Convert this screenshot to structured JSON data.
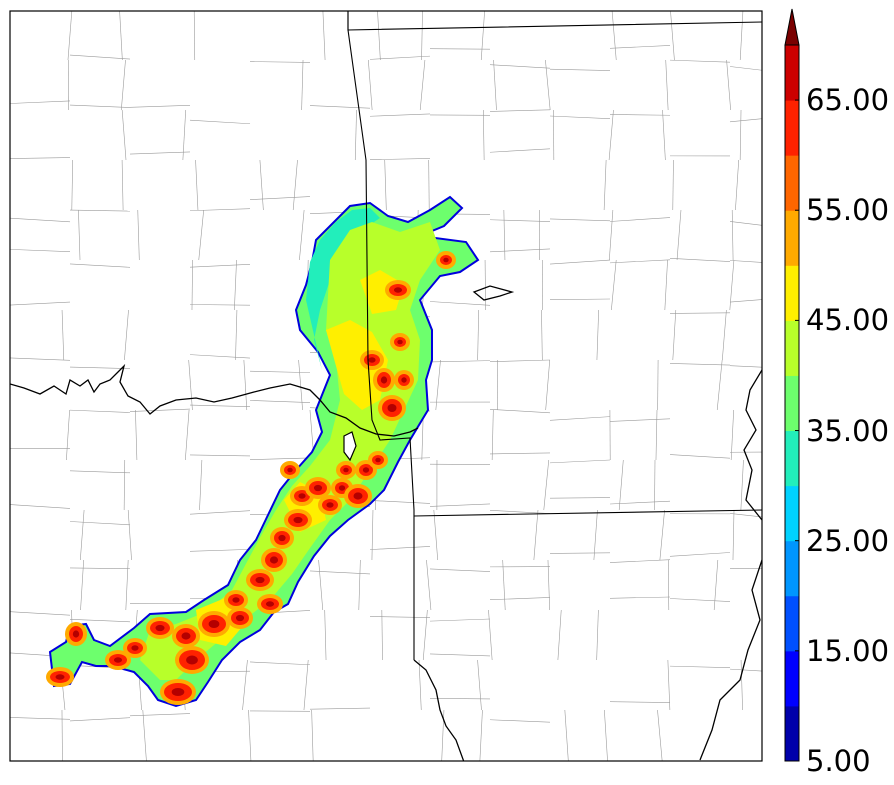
{
  "colorbar": {
    "ticks": [
      "5.00",
      "15.00",
      "25.00",
      "35.00",
      "45.00",
      "55.00",
      "65.00"
    ],
    "levels": [
      5,
      10,
      15,
      20,
      25,
      30,
      35,
      40,
      45,
      50,
      55,
      60,
      65,
      70
    ],
    "colors": [
      "#0000aa",
      "#0000ff",
      "#0050ff",
      "#0096ff",
      "#00d2ff",
      "#22eebb",
      "#6dff6d",
      "#b8ff2a",
      "#ffef00",
      "#ffaa00",
      "#ff6600",
      "#ff2200",
      "#cc0000",
      "#7a0000"
    ],
    "extend": "max"
  },
  "map": {
    "field_palette": {
      "blue_edge": "#0000dd",
      "cyan": "#22eebb",
      "green": "#6dff6d",
      "yellow_green": "#b8ff2a",
      "yellow": "#ffef00",
      "orange": "#ffaa00",
      "red": "#ff2200",
      "dark_red": "#b40000"
    },
    "boundary_color": "#000000",
    "county_line_color": "#9a9a9a",
    "background": "#ffffff"
  }
}
